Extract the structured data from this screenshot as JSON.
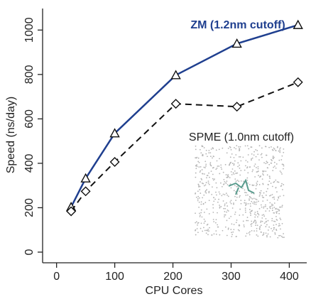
{
  "chart_data": {
    "type": "line",
    "xlabel": "CPU Cores",
    "ylabel": "Speed (ns/day)",
    "x": [
      25,
      50,
      100,
      205,
      310,
      415
    ],
    "series": [
      {
        "name": "ZM (1.2nm cutoff)",
        "color": "#1f3f8f",
        "dash": false,
        "marker": "triangle",
        "values": [
          203,
          332,
          535,
          797,
          939,
          1023
        ]
      },
      {
        "name": "SPME (1.0nm cutoff)",
        "color": "#111111",
        "dash": true,
        "marker": "diamond",
        "values": [
          184,
          274,
          406,
          668,
          655,
          765
        ]
      }
    ],
    "xlim": [
      -24,
      430
    ],
    "ylim": [
      -48,
      1097
    ],
    "xticks": [
      0,
      100,
      200,
      300,
      400
    ],
    "yticks": [
      0,
      200,
      400,
      600,
      800,
      1000
    ]
  }
}
